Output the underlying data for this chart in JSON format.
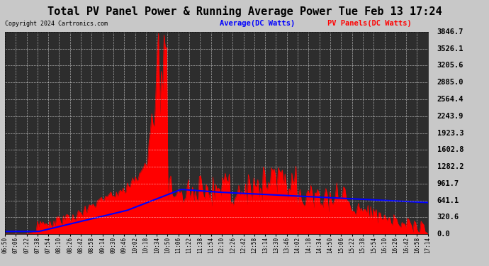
{
  "title": "Total PV Panel Power & Running Average Power Tue Feb 13 17:24",
  "copyright": "Copyright 2024 Cartronics.com",
  "legend_avg": "Average(DC Watts)",
  "legend_pv": "PV Panels(DC Watts)",
  "bg_color": "#1a1a1a",
  "plot_bg_color": "#2a2a2a",
  "grid_color": "#ffffff",
  "title_color": "#000000",
  "title_bg": "#d4d4d4",
  "pv_color": "#ff0000",
  "avg_color": "#0000ff",
  "yticks": [
    0.0,
    320.6,
    641.1,
    961.7,
    1282.2,
    1602.8,
    1923.3,
    2243.9,
    2564.4,
    2885.0,
    3205.6,
    3526.1,
    3846.7
  ],
  "ymax": 3846.7,
  "ymin": 0.0
}
